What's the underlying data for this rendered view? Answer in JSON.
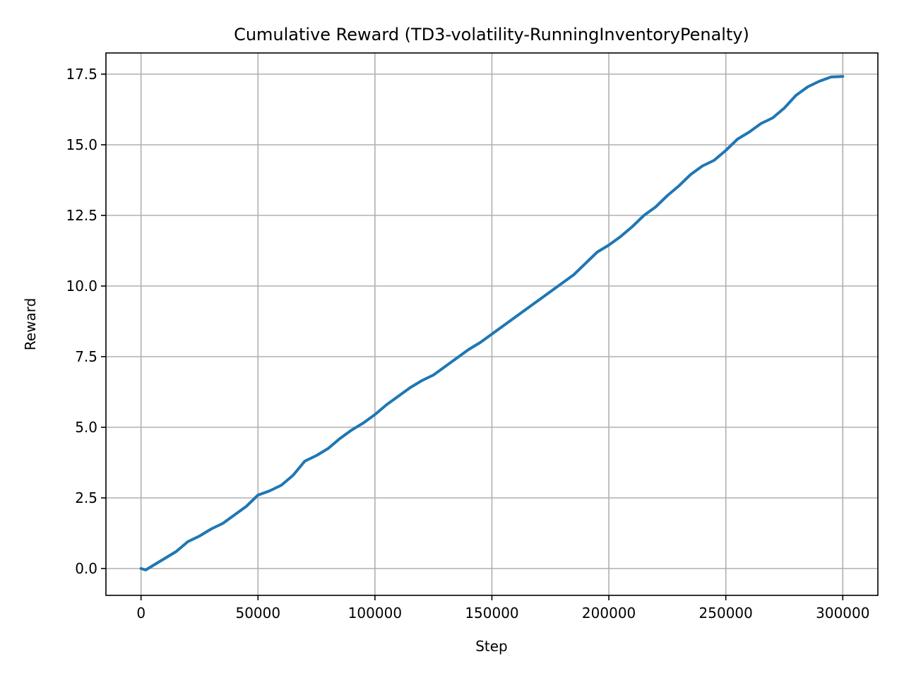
{
  "chart_data": {
    "type": "line",
    "title": "Cumulative Reward (TD3-volatility-RunningInventoryPenalty)",
    "xlabel": "Step",
    "ylabel": "Reward",
    "xlim": [
      -15000,
      315000
    ],
    "ylim": [
      -0.95,
      18.25
    ],
    "x_ticks": [
      0,
      50000,
      100000,
      150000,
      200000,
      250000,
      300000
    ],
    "x_tick_labels": [
      "0",
      "50000",
      "100000",
      "150000",
      "200000",
      "250000",
      "300000"
    ],
    "y_ticks": [
      0.0,
      2.5,
      5.0,
      7.5,
      10.0,
      12.5,
      15.0,
      17.5
    ],
    "y_tick_labels": [
      "0.0",
      "2.5",
      "5.0",
      "7.5",
      "10.0",
      "12.5",
      "15.0",
      "17.5"
    ],
    "grid": true,
    "line_color": "#1f77b4",
    "series": [
      {
        "x": [
          0,
          2000,
          5000,
          10000,
          15000,
          20000,
          25000,
          30000,
          35000,
          40000,
          45000,
          50000,
          55000,
          60000,
          65000,
          70000,
          75000,
          80000,
          85000,
          90000,
          95000,
          100000,
          105000,
          110000,
          115000,
          120000,
          125000,
          130000,
          135000,
          140000,
          145000,
          150000,
          155000,
          160000,
          165000,
          170000,
          175000,
          180000,
          185000,
          190000,
          195000,
          200000,
          205000,
          210000,
          215000,
          220000,
          225000,
          230000,
          235000,
          240000,
          245000,
          250000,
          255000,
          260000,
          265000,
          270000,
          275000,
          280000,
          285000,
          290000,
          295000,
          300000
        ],
        "y": [
          0.0,
          -0.05,
          0.1,
          0.35,
          0.6,
          0.95,
          1.15,
          1.4,
          1.6,
          1.9,
          2.2,
          2.6,
          2.75,
          2.95,
          3.3,
          3.8,
          4.0,
          4.25,
          4.6,
          4.9,
          5.15,
          5.45,
          5.8,
          6.1,
          6.4,
          6.65,
          6.85,
          7.15,
          7.45,
          7.75,
          8.0,
          8.3,
          8.6,
          8.9,
          9.2,
          9.5,
          9.8,
          10.1,
          10.4,
          10.8,
          11.2,
          11.45,
          11.75,
          12.1,
          12.5,
          12.8,
          13.2,
          13.55,
          13.95,
          14.25,
          14.45,
          14.8,
          15.2,
          15.45,
          15.75,
          15.95,
          16.3,
          16.75,
          17.05,
          17.25,
          17.4,
          17.42
        ]
      }
    ]
  }
}
